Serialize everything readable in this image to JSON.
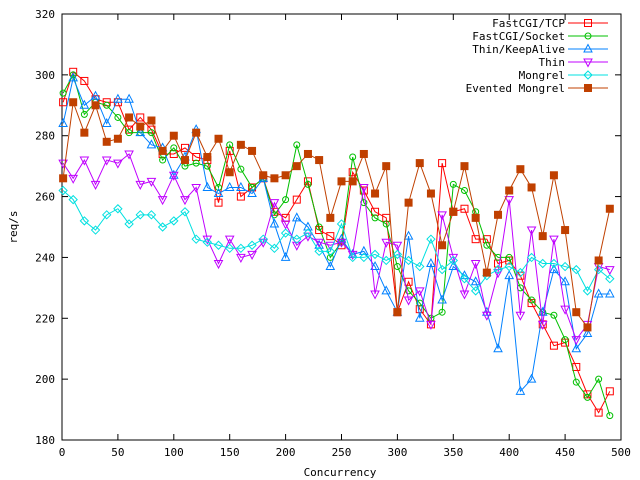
{
  "chart_data": {
    "type": "line",
    "title": "",
    "xlabel": "Concurrency",
    "ylabel": "req/s",
    "xlim": [
      0,
      500
    ],
    "ylim": [
      180,
      320
    ],
    "xticks": [
      0,
      50,
      100,
      150,
      200,
      250,
      300,
      350,
      400,
      450,
      500
    ],
    "yticks": [
      180,
      200,
      220,
      240,
      260,
      280,
      300,
      320
    ],
    "grid": false,
    "legend_position": "top-right",
    "x": [
      1,
      10,
      20,
      30,
      40,
      50,
      60,
      70,
      80,
      90,
      100,
      110,
      120,
      130,
      140,
      150,
      160,
      170,
      180,
      190,
      200,
      210,
      220,
      230,
      240,
      250,
      260,
      270,
      280,
      290,
      300,
      310,
      320,
      330,
      340,
      350,
      360,
      370,
      380,
      390,
      400,
      410,
      420,
      430,
      440,
      450,
      460,
      470,
      480,
      490
    ],
    "series": [
      {
        "name": "FastCGI/TCP",
        "color": "#ff0000",
        "marker": "square",
        "values": [
          291,
          301,
          298,
          292,
          291,
          291,
          282,
          286,
          282,
          274,
          274,
          276,
          273,
          272,
          258,
          275,
          260,
          263,
          266,
          255,
          253,
          259,
          265,
          249,
          247,
          244,
          268,
          262,
          255,
          253,
          222,
          232,
          223,
          218,
          271,
          255,
          256,
          246,
          246,
          238,
          239,
          234,
          225,
          218,
          211,
          212,
          204,
          195,
          189,
          196
        ]
      },
      {
        "name": "FastCGI/Socket",
        "color": "#00c000",
        "marker": "circle",
        "values": [
          294,
          300,
          287,
          291,
          290,
          286,
          281,
          281,
          281,
          272,
          276,
          270,
          271,
          270,
          263,
          277,
          269,
          263,
          266,
          254,
          259,
          277,
          264,
          250,
          240,
          245,
          273,
          258,
          253,
          251,
          237,
          229,
          225,
          220,
          222,
          264,
          262,
          255,
          244,
          240,
          240,
          230,
          226,
          222,
          221,
          213,
          199,
          194,
          200,
          188
        ]
      },
      {
        "name": "Thin/KeepAlive",
        "color": "#0080ff",
        "marker": "triangle",
        "values": [
          284,
          299,
          290,
          293,
          284,
          292,
          292,
          281,
          277,
          276,
          267,
          273,
          282,
          263,
          261,
          263,
          263,
          261,
          266,
          251,
          240,
          253,
          250,
          244,
          237,
          246,
          241,
          242,
          237,
          229,
          222,
          247,
          220,
          238,
          226,
          237,
          234,
          232,
          222,
          210,
          234,
          196,
          200,
          222,
          236,
          232,
          210,
          215,
          228,
          228
        ]
      },
      {
        "name": "Thin",
        "color": "#c000ff",
        "marker": "triangle-down",
        "values": [
          271,
          266,
          272,
          264,
          272,
          271,
          274,
          264,
          265,
          259,
          267,
          259,
          263,
          246,
          238,
          246,
          240,
          241,
          245,
          258,
          251,
          244,
          247,
          245,
          244,
          245,
          241,
          263,
          228,
          245,
          244,
          226,
          229,
          218,
          254,
          240,
          228,
          238,
          221,
          235,
          259,
          221,
          249,
          218,
          246,
          223,
          213,
          218,
          237,
          236
        ]
      },
      {
        "name": "Mongrel",
        "color": "#00e0e0",
        "marker": "diamond",
        "values": [
          262,
          259,
          252,
          249,
          254,
          256,
          251,
          254,
          254,
          250,
          252,
          255,
          246,
          245,
          244,
          243,
          243,
          244,
          246,
          243,
          248,
          246,
          248,
          242,
          242,
          251,
          240,
          240,
          241,
          239,
          241,
          239,
          237,
          246,
          236,
          239,
          233,
          229,
          234,
          236,
          237,
          235,
          240,
          238,
          238,
          237,
          236,
          229,
          236,
          233
        ]
      },
      {
        "name": "Evented Mongrel",
        "color": "#c04000",
        "marker": "filled-square",
        "values": [
          266,
          291,
          281,
          290,
          278,
          279,
          286,
          283,
          285,
          275,
          280,
          272,
          281,
          273,
          279,
          268,
          277,
          275,
          267,
          266,
          267,
          270,
          274,
          272,
          253,
          265,
          265,
          274,
          261,
          270,
          222,
          258,
          271,
          261,
          244,
          255,
          270,
          253,
          235,
          254,
          262,
          269,
          263,
          247,
          267,
          249,
          222,
          217,
          239,
          256
        ]
      }
    ]
  }
}
